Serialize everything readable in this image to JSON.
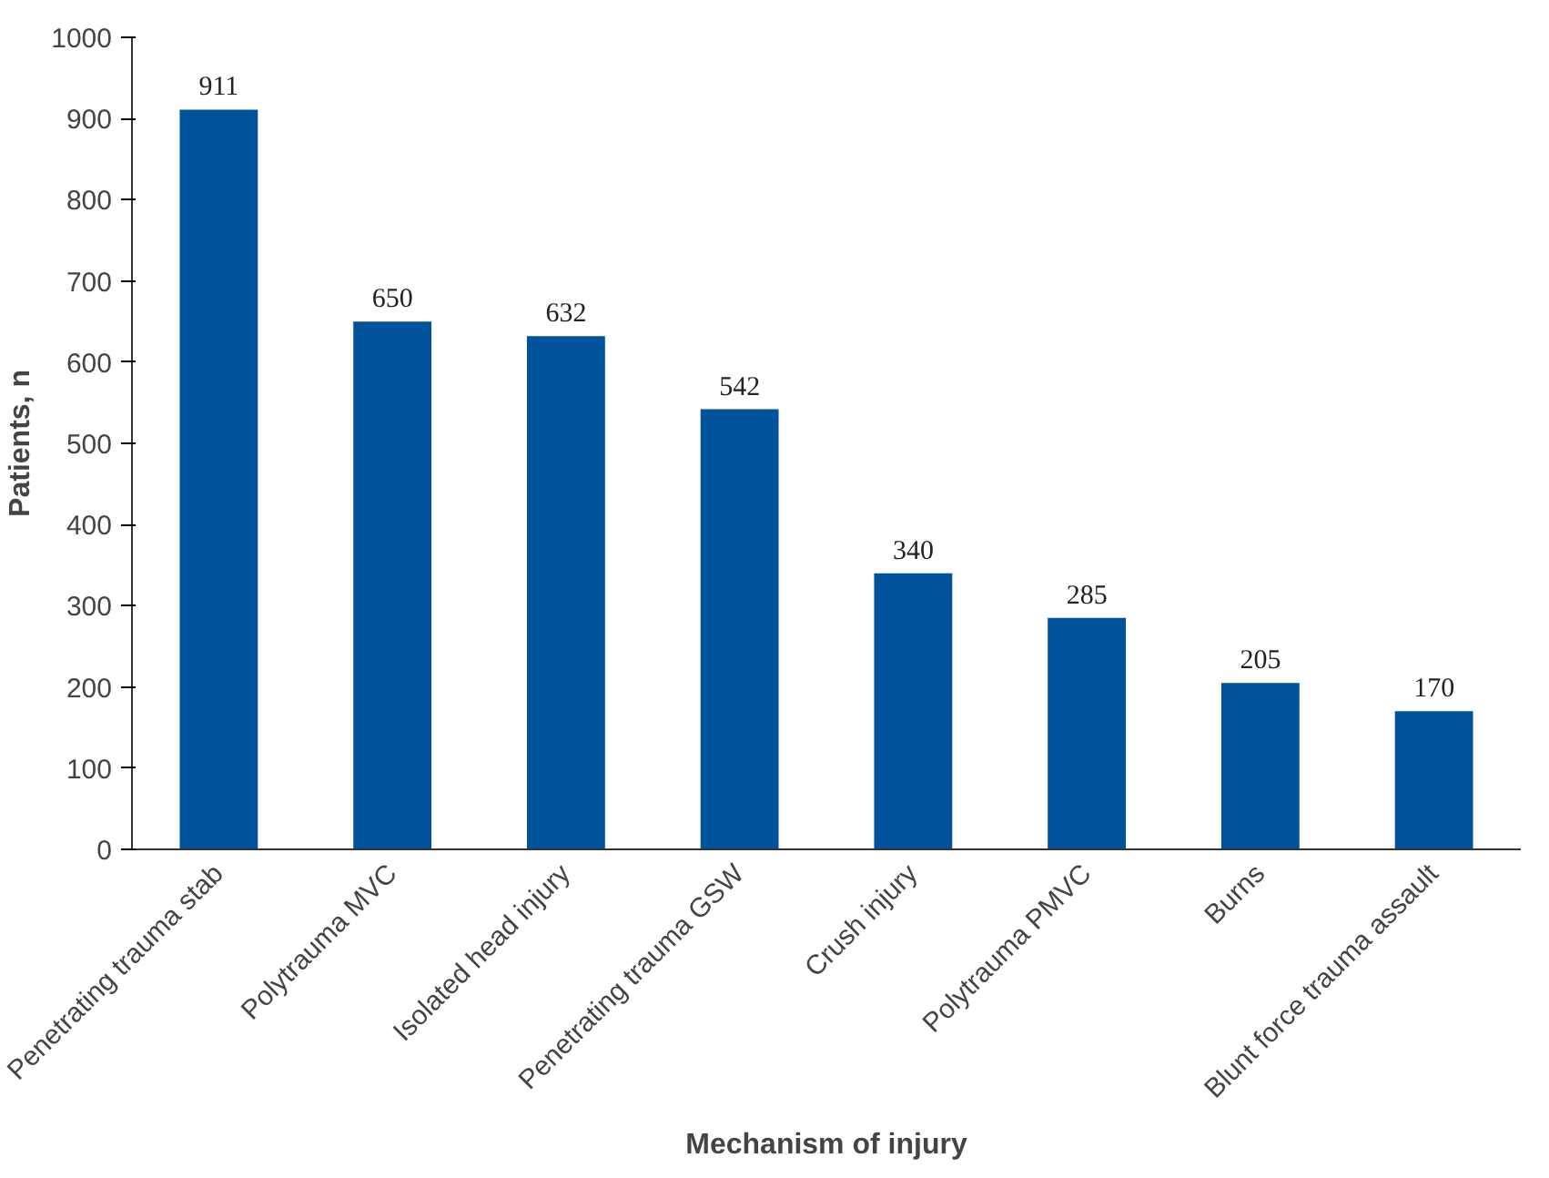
{
  "chart_data": {
    "type": "bar",
    "xlabel": "Mechanism of injury",
    "ylabel": "Patients, n",
    "categories": [
      "Penetrating trauma stab",
      "Polytrauma MVC",
      "Isolated head injury",
      "Penetrating trauma GSW",
      "Crush injury",
      "Polytrauma PMVC",
      "Burns",
      "Blunt force trauma assault"
    ],
    "values": [
      911,
      650,
      632,
      542,
      340,
      285,
      205,
      170
    ],
    "color": "#00529b",
    "ylim": [
      0,
      1000
    ],
    "yticks": [
      0,
      100,
      200,
      300,
      400,
      500,
      600,
      700,
      800,
      900,
      1000
    ],
    "grid": false,
    "data_labels": true
  }
}
